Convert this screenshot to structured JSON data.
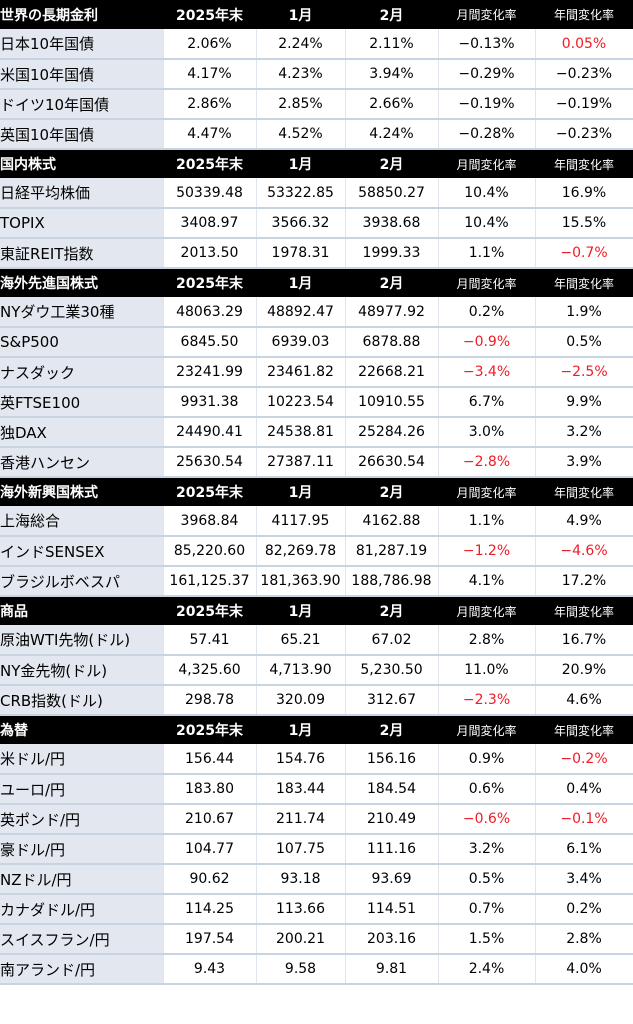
{
  "sections": [
    {
      "title": "世界の長期金利",
      "headers": [
        "2025年末",
        "1月",
        "2月",
        "月間変化率",
        "年間変化率"
      ],
      "rows": [
        {
          "name": "日本10年国債",
          "v": [
            "2.06%",
            "2.24%",
            "2.11%",
            "−0.13%",
            "0.05%"
          ],
          "red": [
            false,
            false,
            false,
            false,
            true
          ]
        },
        {
          "name": "米国10年国債",
          "v": [
            "4.17%",
            "4.23%",
            "3.94%",
            "−0.29%",
            "−0.23%"
          ],
          "red": [
            false,
            false,
            false,
            false,
            false
          ]
        },
        {
          "name": "ドイツ10年国債",
          "v": [
            "2.86%",
            "2.85%",
            "2.66%",
            "−0.19%",
            "−0.19%"
          ],
          "red": [
            false,
            false,
            false,
            false,
            false
          ]
        },
        {
          "name": "英国10年国債",
          "v": [
            "4.47%",
            "4.52%",
            "4.24%",
            "−0.28%",
            "−0.23%"
          ],
          "red": [
            false,
            false,
            false,
            false,
            false
          ]
        }
      ]
    },
    {
      "title": "国内株式",
      "headers": [
        "2025年末",
        "1月",
        "2月",
        "月間変化率",
        "年間変化率"
      ],
      "rows": [
        {
          "name": "日経平均株価",
          "v": [
            "50339.48",
            "53322.85",
            "58850.27",
            "10.4%",
            "16.9%"
          ],
          "red": [
            false,
            false,
            false,
            false,
            false
          ]
        },
        {
          "name": "TOPIX",
          "indent": true,
          "v": [
            "3408.97",
            "3566.32",
            "3938.68",
            "10.4%",
            "15.5%"
          ],
          "red": [
            false,
            false,
            false,
            false,
            false
          ]
        },
        {
          "name": "東証REIT指数",
          "v": [
            "2013.50",
            "1978.31",
            "1999.33",
            "1.1%",
            "−0.7%"
          ],
          "red": [
            false,
            false,
            false,
            false,
            true
          ]
        }
      ]
    },
    {
      "title": "海外先進国株式",
      "headers": [
        "2025年末",
        "1月",
        "2月",
        "月間変化率",
        "年間変化率"
      ],
      "rows": [
        {
          "name": "NYダウ工業30種",
          "v": [
            "48063.29",
            "48892.47",
            "48977.92",
            "0.2%",
            "1.9%"
          ],
          "red": [
            false,
            false,
            false,
            false,
            false
          ]
        },
        {
          "name": "S&P500",
          "v": [
            "6845.50",
            "6939.03",
            "6878.88",
            "−0.9%",
            "0.5%"
          ],
          "red": [
            false,
            false,
            false,
            true,
            false
          ]
        },
        {
          "name": "ナスダック",
          "v": [
            "23241.99",
            "23461.82",
            "22668.21",
            "−3.4%",
            "−2.5%"
          ],
          "red": [
            false,
            false,
            false,
            true,
            true
          ]
        },
        {
          "name": "英FTSE100",
          "v": [
            "9931.38",
            "10223.54",
            "10910.55",
            "6.7%",
            "9.9%"
          ],
          "red": [
            false,
            false,
            false,
            false,
            false
          ]
        },
        {
          "name": "独DAX",
          "v": [
            "24490.41",
            "24538.81",
            "25284.26",
            "3.0%",
            "3.2%"
          ],
          "red": [
            false,
            false,
            false,
            false,
            false
          ]
        },
        {
          "name": "香港ハンセン",
          "v": [
            "25630.54",
            "27387.11",
            "26630.54",
            "−2.8%",
            "3.9%"
          ],
          "red": [
            false,
            false,
            false,
            true,
            false
          ]
        }
      ]
    },
    {
      "title": "海外新興国株式",
      "headers": [
        "2025年末",
        "1月",
        "2月",
        "月間変化率",
        "年間変化率"
      ],
      "rows": [
        {
          "name": "上海総合",
          "v": [
            "3968.84",
            "4117.95",
            "4162.88",
            "1.1%",
            "4.9%"
          ],
          "red": [
            false,
            false,
            false,
            false,
            false
          ]
        },
        {
          "name": "インドSENSEX",
          "v": [
            "85,220.60",
            "82,269.78",
            "81,287.19",
            "−1.2%",
            "−4.6%"
          ],
          "red": [
            false,
            false,
            false,
            true,
            true
          ]
        },
        {
          "name": "ブラジルボベスパ",
          "v": [
            "161,125.37",
            "181,363.90",
            "188,786.98",
            "4.1%",
            "17.2%"
          ],
          "red": [
            false,
            false,
            false,
            false,
            false
          ]
        }
      ]
    },
    {
      "title": "商品",
      "headers": [
        "2025年末",
        "1月",
        "2月",
        "月間変化率",
        "年間変化率"
      ],
      "rows": [
        {
          "name": "原油WTI先物(ドル)",
          "v": [
            "57.41",
            "65.21",
            "67.02",
            "2.8%",
            "16.7%"
          ],
          "red": [
            false,
            false,
            false,
            false,
            false
          ]
        },
        {
          "name": "NY金先物(ドル)",
          "v": [
            "4,325.60",
            "4,713.90",
            "5,230.50",
            "11.0%",
            "20.9%"
          ],
          "red": [
            false,
            false,
            false,
            false,
            false
          ]
        },
        {
          "name": "CRB指数(ドル)",
          "v": [
            "298.78",
            "320.09",
            "312.67",
            "−2.3%",
            "4.6%"
          ],
          "red": [
            false,
            false,
            false,
            true,
            false
          ]
        }
      ]
    },
    {
      "title": "為替",
      "headers": [
        "2025年末",
        "1月",
        "2月",
        "月間変化率",
        "年間変化率"
      ],
      "rows": [
        {
          "name": "米ドル/円",
          "v": [
            "156.44",
            "154.76",
            "156.16",
            "0.9%",
            "−0.2%"
          ],
          "red": [
            false,
            false,
            false,
            false,
            true
          ]
        },
        {
          "name": "ユーロ/円",
          "v": [
            "183.80",
            "183.44",
            "184.54",
            "0.6%",
            "0.4%"
          ],
          "red": [
            false,
            false,
            false,
            false,
            false
          ]
        },
        {
          "name": "英ポンド/円",
          "v": [
            "210.67",
            "211.74",
            "210.49",
            "−0.6%",
            "−0.1%"
          ],
          "red": [
            false,
            false,
            false,
            true,
            true
          ]
        },
        {
          "name": "豪ドル/円",
          "v": [
            "104.77",
            "107.75",
            "111.16",
            "3.2%",
            "6.1%"
          ],
          "red": [
            false,
            false,
            false,
            false,
            false
          ]
        },
        {
          "name": "NZドル/円",
          "v": [
            "90.62",
            "93.18",
            "93.69",
            "0.5%",
            "3.4%"
          ],
          "red": [
            false,
            false,
            false,
            false,
            false
          ]
        },
        {
          "name": "カナダドル/円",
          "v": [
            "114.25",
            "113.66",
            "114.51",
            "0.7%",
            "0.2%"
          ],
          "red": [
            false,
            false,
            false,
            false,
            false
          ]
        },
        {
          "name": "スイスフラン/円",
          "v": [
            "197.54",
            "200.21",
            "203.16",
            "1.5%",
            "2.8%"
          ],
          "red": [
            false,
            false,
            false,
            false,
            false
          ]
        },
        {
          "name": "南アランド/円",
          "v": [
            "9.43",
            "9.58",
            "9.81",
            "2.4%",
            "4.0%"
          ],
          "red": [
            false,
            false,
            false,
            false,
            false
          ]
        }
      ]
    }
  ],
  "colors": {
    "header_bg": "#000000",
    "header_text": "#ffffff",
    "negative_text": "#ee1c25",
    "label_bg": "#e3e8f0"
  }
}
